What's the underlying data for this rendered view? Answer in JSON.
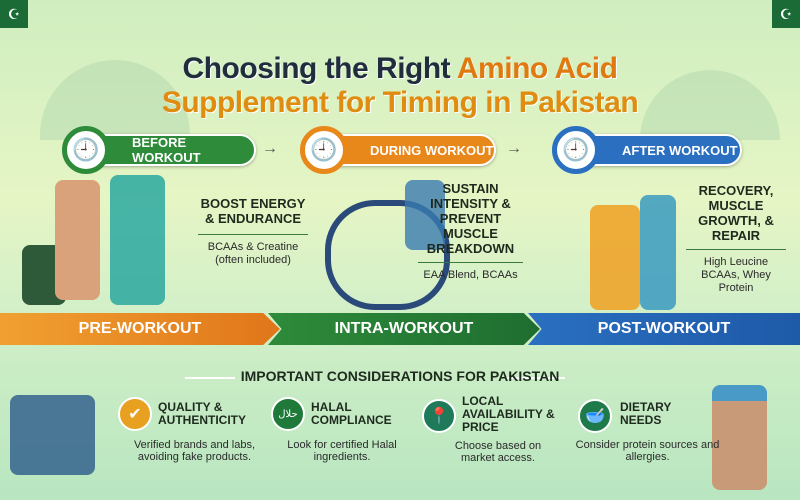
{
  "title": {
    "line1_prefix": "Choosing the Right ",
    "line1_highlight": "Amino Acid",
    "line2": "Supplement for Timing in Pakistan"
  },
  "timings": [
    {
      "label": "BEFORE WORKOUT",
      "color": "#2e8b3a",
      "benefit": "BOOST ENERGY & ENDURANCE",
      "supplements": "BCAAs & Creatine (often included)",
      "phase": "PRE-WORKOUT"
    },
    {
      "label": "DURING WORKOUT",
      "color": "#e8871a",
      "benefit": "SUSTAIN INTENSITY & PREVENT MUSCLE BREAKDOWN",
      "supplements": "EAA Blend, BCAAs",
      "phase": "INTRA-WORKOUT"
    },
    {
      "label": "AFTER WORKOUT",
      "color": "#2a6fc0",
      "benefit": "RECOVERY, MUSCLE GROWTH, & REPAIR",
      "supplements": "High Leucine BCAAs, Whey Protein",
      "phase": "POST-WORKOUT"
    }
  ],
  "considerations": {
    "heading": "IMPORTANT CONSIDERATIONS FOR PAKISTAN",
    "items": [
      {
        "title": "QUALITY & AUTHENTICITY",
        "desc": "Verified brands and labs, avoiding fake products.",
        "icon": "award-ribbon-icon",
        "color": "#e8a020"
      },
      {
        "title": "HALAL COMPLIANCE",
        "desc": "Look for certified Halal ingredients.",
        "icon": "halal-icon",
        "color": "#1f7a3a",
        "glyph": "حلال"
      },
      {
        "title": "LOCAL AVAILABILITY & PRICE",
        "desc": "Choose based on market access.",
        "icon": "map-pin-icon",
        "color": "#1f7a5a"
      },
      {
        "title": "DIETARY NEEDS",
        "desc": "Consider protein sources and allergies.",
        "icon": "bowl-icon",
        "color": "#1f7a4a"
      }
    ]
  }
}
